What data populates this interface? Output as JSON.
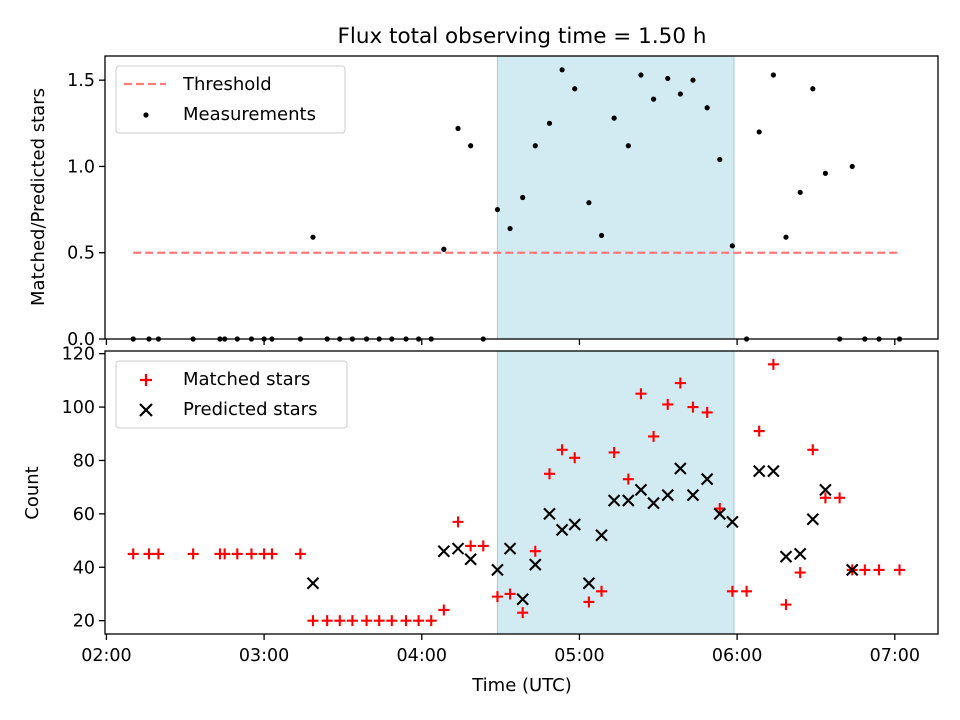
{
  "figure": {
    "title": "Flux total observing time = 1.50 h",
    "xlabel": "Time (UTC)",
    "x_ticks": [
      "02:00",
      "03:00",
      "04:00",
      "05:00",
      "06:00",
      "07:00"
    ],
    "x_tick_hours": [
      2,
      3,
      4,
      5,
      6,
      7
    ],
    "xlim_hours": [
      1.991,
      7.274
    ],
    "highlight_span_hours": [
      4.48,
      5.98
    ],
    "highlight_color": "#add8e6"
  },
  "chart_data": [
    {
      "type": "scatter",
      "ylabel": "Matched/Predicted stars",
      "ylim": [
        0,
        1.64
      ],
      "y_ticks": [
        "0.0",
        "0.5",
        "1.0",
        "1.5"
      ],
      "y_tick_values": [
        0,
        0.5,
        1.0,
        1.5
      ],
      "legend_position": "top-left",
      "threshold": {
        "name": "Threshold",
        "value": 0.5,
        "x_range_hours": [
          2.17,
          7.03
        ],
        "color": "#ff7b7b"
      },
      "series": [
        {
          "name": "Measurements",
          "color": "#000000",
          "x_hours": [
            2.17,
            2.27,
            2.33,
            2.55,
            2.72,
            2.75,
            2.83,
            2.92,
            3.0,
            3.05,
            3.23,
            3.31,
            3.4,
            3.48,
            3.56,
            3.65,
            3.73,
            3.81,
            3.9,
            3.98,
            4.06,
            4.14,
            4.23,
            4.31,
            4.39,
            4.48,
            4.56,
            4.64,
            4.72,
            4.81,
            4.89,
            4.97,
            5.06,
            5.14,
            5.22,
            5.31,
            5.39,
            5.47,
            5.56,
            5.64,
            5.72,
            5.81,
            5.89,
            5.97,
            6.06,
            6.14,
            6.23,
            6.31,
            6.4,
            6.48,
            6.56,
            6.65,
            6.73,
            6.81,
            6.9,
            7.03
          ],
          "values": [
            0,
            0,
            0,
            0,
            0,
            0,
            0,
            0,
            0,
            0,
            0,
            0.59,
            0,
            0,
            0,
            0,
            0,
            0,
            0,
            0,
            0,
            0.52,
            1.22,
            1.12,
            0,
            0.75,
            0.64,
            0.82,
            1.12,
            1.25,
            1.56,
            1.45,
            0.79,
            0.6,
            1.28,
            1.12,
            1.53,
            1.39,
            1.51,
            1.42,
            1.5,
            1.34,
            1.04,
            0.54,
            0,
            1.2,
            1.53,
            0.59,
            0.85,
            1.45,
            0.96,
            0,
            1.0,
            0,
            0,
            0
          ]
        }
      ]
    },
    {
      "type": "scatter",
      "ylabel": "Count",
      "ylim": [
        15,
        121
      ],
      "y_ticks": [
        "20",
        "40",
        "60",
        "80",
        "100",
        "120"
      ],
      "y_tick_values": [
        20,
        40,
        60,
        80,
        100,
        120
      ],
      "legend_position": "top-left",
      "series": [
        {
          "name": "Matched stars",
          "color": "#ff0000",
          "marker": "plus",
          "x_hours": [
            2.17,
            2.27,
            2.33,
            2.55,
            2.72,
            2.75,
            2.83,
            2.92,
            3.0,
            3.05,
            3.23,
            3.31,
            3.4,
            3.48,
            3.56,
            3.65,
            3.73,
            3.81,
            3.9,
            3.98,
            4.06,
            4.14,
            4.23,
            4.31,
            4.39,
            4.48,
            4.56,
            4.64,
            4.72,
            4.81,
            4.89,
            4.97,
            5.06,
            5.14,
            5.22,
            5.31,
            5.39,
            5.47,
            5.56,
            5.64,
            5.72,
            5.81,
            5.89,
            5.97,
            6.06,
            6.14,
            6.23,
            6.31,
            6.4,
            6.48,
            6.56,
            6.65,
            6.73,
            6.81,
            6.9,
            7.03
          ],
          "values": [
            45,
            45,
            45,
            45,
            45,
            45,
            45,
            45,
            45,
            45,
            45,
            20,
            20,
            20,
            20,
            20,
            20,
            20,
            20,
            20,
            20,
            24,
            57,
            48,
            48,
            29,
            30,
            23,
            46,
            75,
            84,
            81,
            27,
            31,
            83,
            73,
            105,
            89,
            101,
            109,
            100,
            98,
            62,
            31,
            31,
            91,
            116,
            26,
            38,
            84,
            66,
            66,
            39,
            39,
            39,
            39
          ]
        },
        {
          "name": "Predicted stars",
          "color": "#000000",
          "marker": "x",
          "x_hours": [
            3.31,
            4.14,
            4.23,
            4.31,
            4.48,
            4.56,
            4.64,
            4.72,
            4.81,
            4.89,
            4.97,
            5.06,
            5.14,
            5.22,
            5.31,
            5.39,
            5.47,
            5.56,
            5.64,
            5.72,
            5.81,
            5.89,
            5.97,
            6.14,
            6.23,
            6.31,
            6.4,
            6.48,
            6.56,
            6.73
          ],
          "values": [
            34,
            46,
            47,
            43,
            39,
            47,
            28,
            41,
            60,
            54,
            56,
            34,
            52,
            65,
            65,
            69,
            64,
            67,
            77,
            67,
            73,
            60,
            57,
            76,
            76,
            44,
            45,
            58,
            69,
            39
          ]
        }
      ]
    }
  ]
}
